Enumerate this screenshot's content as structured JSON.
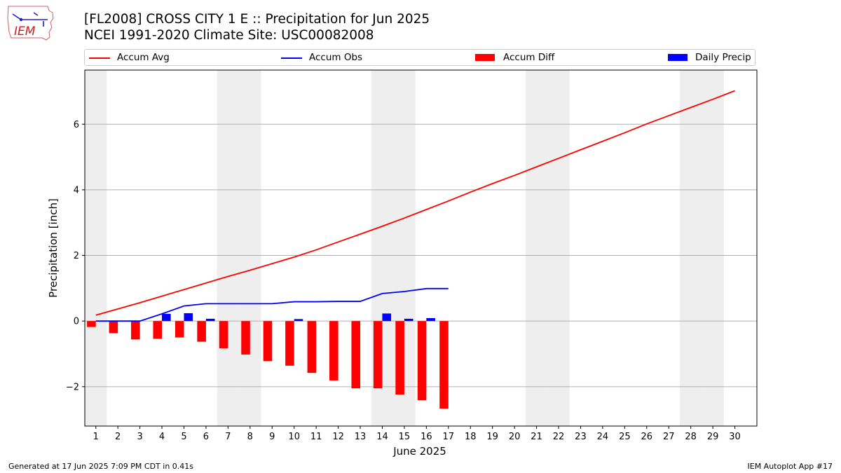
{
  "header": {
    "title_line1": "[FL2008] CROSS CITY 1 E :: Precipitation for Jun 2025",
    "title_line2": "NCEI 1991-2020 Climate Site: USC00082008",
    "logo_text": "IEM"
  },
  "legend": {
    "accum_avg": "Accum Avg",
    "accum_obs": "Accum Obs",
    "accum_diff": "Accum Diff",
    "daily_precip": "Daily Precip"
  },
  "footer": {
    "generated": "Generated at 17 Jun 2025 7:09 PM CDT in 0.41s",
    "app": "IEM Autoplot App #17"
  },
  "colors": {
    "avg": "#ff0000",
    "obs": "#0000ff",
    "diff": "#ff0000",
    "daily": "#0000ff",
    "weekend_shade": "#eeeeee",
    "grid": "#b0b0b0"
  },
  "chart_data": {
    "type": "bar",
    "xlabel": "June 2025",
    "ylabel": "Precipitation [inch]",
    "xlim": [
      0.5,
      31
    ],
    "ylim": [
      -3.2,
      7.65
    ],
    "yticks": [
      -2,
      0,
      2,
      4,
      6
    ],
    "ytick_labels": [
      "−2",
      "0",
      "2",
      "4",
      "6"
    ],
    "xticks": [
      1,
      2,
      3,
      4,
      5,
      6,
      7,
      8,
      9,
      10,
      11,
      12,
      13,
      14,
      15,
      16,
      17,
      18,
      19,
      20,
      21,
      22,
      23,
      24,
      25,
      26,
      27,
      28,
      29,
      30
    ],
    "grid_y": true,
    "legend_position": "top",
    "weekend_days": [
      1,
      7,
      8,
      14,
      15,
      21,
      22,
      28,
      29
    ],
    "series": [
      {
        "name": "Accum Avg",
        "kind": "line",
        "x": [
          1,
          2,
          3,
          4,
          5,
          6,
          7,
          8,
          9,
          10,
          11,
          12,
          13,
          14,
          15,
          16,
          17,
          18,
          19,
          20,
          21,
          22,
          23,
          24,
          25,
          26,
          27,
          28,
          29,
          30
        ],
        "values": [
          0.18,
          0.37,
          0.56,
          0.76,
          0.96,
          1.16,
          1.36,
          1.55,
          1.75,
          1.95,
          2.17,
          2.41,
          2.65,
          2.89,
          3.14,
          3.4,
          3.66,
          3.93,
          4.19,
          4.44,
          4.7,
          4.96,
          5.22,
          5.48,
          5.74,
          6.01,
          6.26,
          6.51,
          6.76,
          7.02
        ]
      },
      {
        "name": "Accum Obs",
        "kind": "line",
        "x": [
          1,
          2,
          3,
          4,
          5,
          6,
          7,
          8,
          9,
          10,
          11,
          12,
          13,
          14,
          15,
          16,
          17
        ],
        "values": [
          0.0,
          0.0,
          0.0,
          0.22,
          0.46,
          0.53,
          0.53,
          0.53,
          0.53,
          0.59,
          0.59,
          0.6,
          0.6,
          0.84,
          0.9,
          0.99,
          0.99
        ]
      },
      {
        "name": "Accum Diff",
        "kind": "bar",
        "x": [
          1,
          2,
          3,
          4,
          5,
          6,
          7,
          8,
          9,
          10,
          11,
          12,
          13,
          14,
          15,
          16,
          17
        ],
        "values": [
          -0.18,
          -0.37,
          -0.56,
          -0.54,
          -0.5,
          -0.63,
          -0.83,
          -1.02,
          -1.22,
          -1.36,
          -1.58,
          -1.81,
          -2.05,
          -2.05,
          -2.24,
          -2.41,
          -2.67
        ]
      },
      {
        "name": "Daily Precip",
        "kind": "bar",
        "x": [
          4,
          5,
          6,
          10,
          14,
          15,
          16
        ],
        "values": [
          0.22,
          0.24,
          0.07,
          0.06,
          0.23,
          0.07,
          0.09
        ]
      }
    ]
  }
}
